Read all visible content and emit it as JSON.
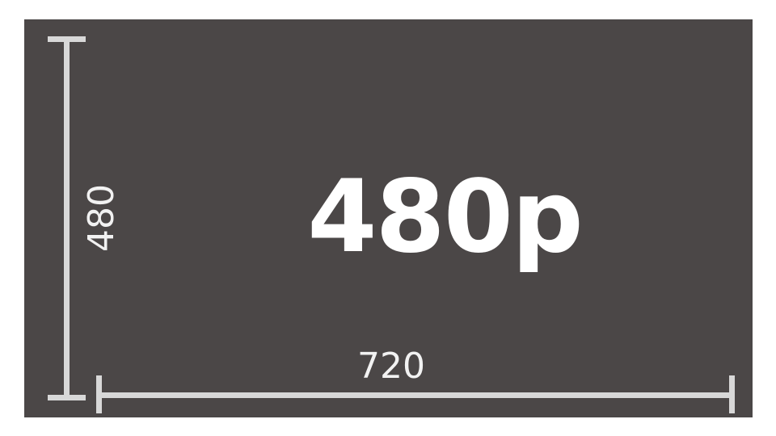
{
  "resolution_label": "480p",
  "width_label": "720",
  "height_label": "480",
  "colors": {
    "background": "#4b4747",
    "lines": "#d8d8d8",
    "text": "#ffffff"
  }
}
